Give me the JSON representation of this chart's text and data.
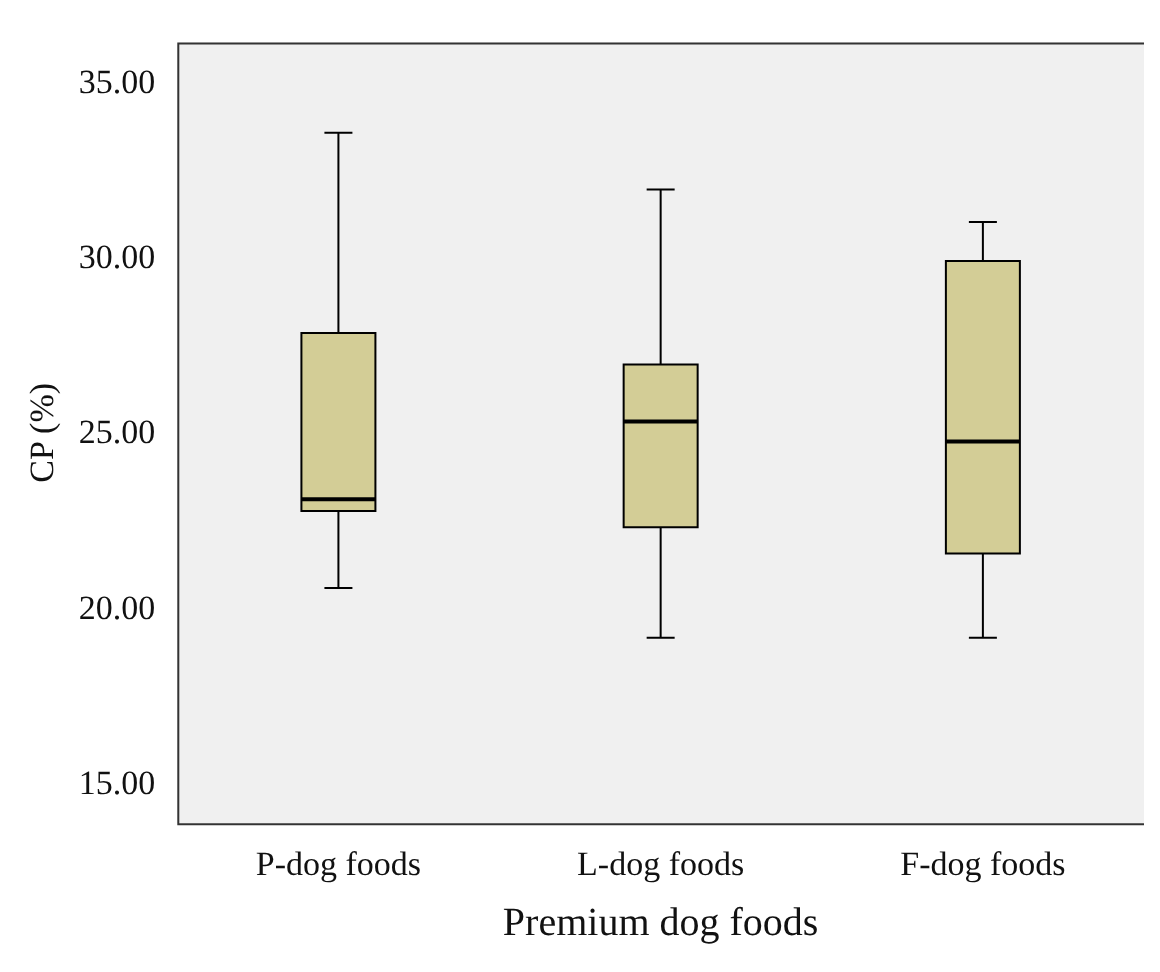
{
  "chart_data": {
    "type": "box",
    "xlabel": "Premium dog foods",
    "ylabel": "CP (%)",
    "categories": [
      "P-dog foods",
      "L-dog foods",
      "F-dog foods"
    ],
    "color": "#d3cd96",
    "boxes": [
      {
        "low": 20.62,
        "q1": 22.82,
        "median": 23.15,
        "q3": 27.9,
        "high": 33.62
      },
      {
        "low": 19.2,
        "q1": 22.35,
        "median": 25.37,
        "q3": 27.0,
        "high": 32.0
      },
      {
        "low": 19.2,
        "q1": 21.6,
        "median": 24.8,
        "q3": 29.96,
        "high": 31.07
      }
    ],
    "ylim": [
      13.9,
      36.2
    ],
    "yticks": [
      {
        "value": 15,
        "label": "15.00"
      },
      {
        "value": 20,
        "label": "20.00"
      },
      {
        "value": 25,
        "label": "25.00"
      },
      {
        "value": 30,
        "label": "30.00"
      },
      {
        "value": 35,
        "label": "35.00"
      }
    ]
  }
}
